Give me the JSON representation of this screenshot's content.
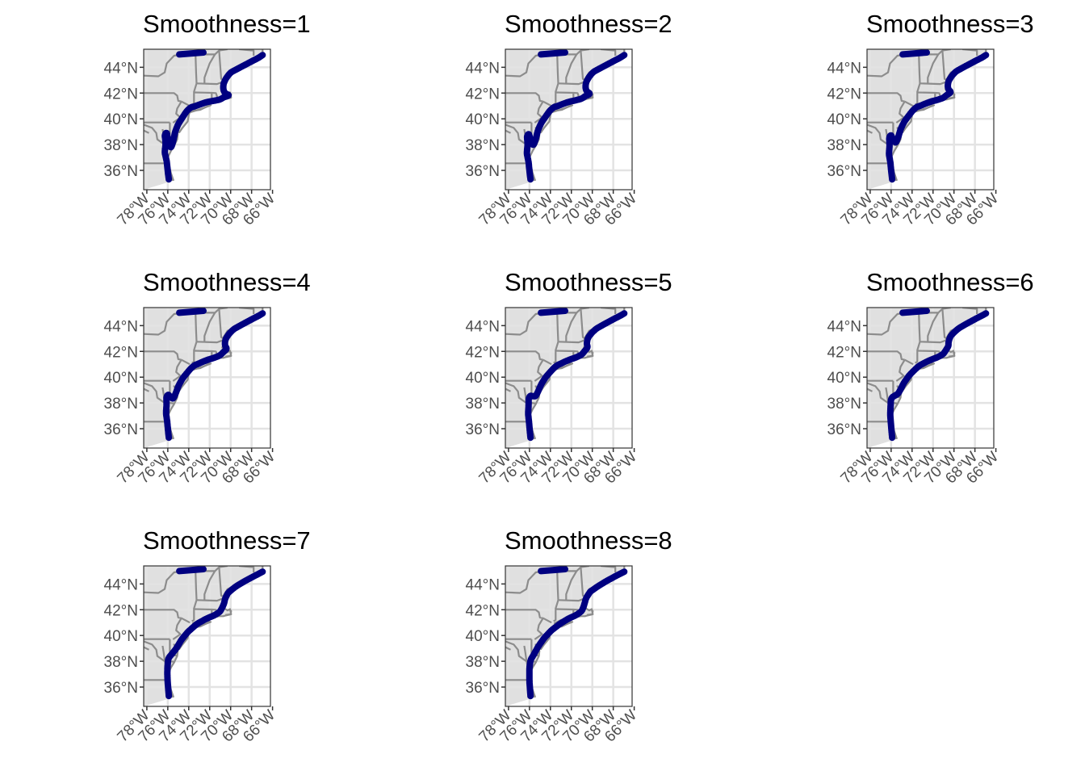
{
  "chart_data": {
    "type": "map",
    "lon_range": [
      -78.3,
      -66.2
    ],
    "lat_range": [
      34.5,
      45.4
    ],
    "lat_ticks": [
      36,
      38,
      40,
      42,
      44
    ],
    "lat_labels": [
      "36°N",
      "38°N",
      "40°N",
      "42°N",
      "44°N"
    ],
    "lon_ticks": [
      -78,
      -76,
      -74,
      -72,
      -70,
      -68,
      -66
    ],
    "lon_labels": [
      "78°W",
      "76°W",
      "74°W",
      "72°W",
      "70°W",
      "68°W",
      "66°W"
    ],
    "grid": true,
    "land_color": "#e0e0e0",
    "border_color": "#8c8c8c",
    "track_color": "#000080",
    "panels": [
      {
        "title": "Smoothness=1",
        "smoothness": 1
      },
      {
        "title": "Smoothness=2",
        "smoothness": 2
      },
      {
        "title": "Smoothness=3",
        "smoothness": 3
      },
      {
        "title": "Smoothness=4",
        "smoothness": 4
      },
      {
        "title": "Smoothness=5",
        "smoothness": 5
      },
      {
        "title": "Smoothness=6",
        "smoothness": 6
      },
      {
        "title": "Smoothness=7",
        "smoothness": 7
      },
      {
        "title": "Smoothness=8",
        "smoothness": 8
      }
    ],
    "track": {
      "rough": [
        [
          -75.9,
          35.3
        ],
        [
          -76.0,
          35.9
        ],
        [
          -76.1,
          36.7
        ],
        [
          -76.3,
          37.4
        ],
        [
          -76.2,
          38.1
        ],
        [
          -76.3,
          38.8
        ],
        [
          -76.1,
          39.0
        ],
        [
          -76.0,
          38.4
        ],
        [
          -75.7,
          37.7
        ],
        [
          -75.5,
          38.2
        ],
        [
          -75.3,
          39.0
        ],
        [
          -75.0,
          39.6
        ],
        [
          -74.6,
          40.1
        ],
        [
          -74.2,
          40.6
        ],
        [
          -73.8,
          40.9
        ],
        [
          -73.5,
          40.95
        ],
        [
          -73.0,
          41.1
        ],
        [
          -72.3,
          41.3
        ],
        [
          -71.6,
          41.4
        ],
        [
          -71.0,
          41.5
        ],
        [
          -70.6,
          41.7
        ],
        [
          -70.3,
          41.75
        ],
        [
          -70.1,
          41.85
        ],
        [
          -70.5,
          41.95
        ],
        [
          -70.7,
          42.2
        ],
        [
          -70.7,
          42.7
        ],
        [
          -70.4,
          43.2
        ],
        [
          -70.0,
          43.6
        ],
        [
          -69.3,
          43.9
        ],
        [
          -68.6,
          44.2
        ],
        [
          -67.9,
          44.5
        ],
        [
          -67.3,
          44.75
        ],
        [
          -66.95,
          44.95
        ]
      ],
      "smooth": [
        [
          -75.9,
          35.3
        ],
        [
          -76.0,
          36.4
        ],
        [
          -76.0,
          37.5
        ],
        [
          -75.9,
          38.1
        ],
        [
          -75.6,
          38.5
        ],
        [
          -75.2,
          39.1
        ],
        [
          -74.6,
          39.8
        ],
        [
          -73.9,
          40.4
        ],
        [
          -73.1,
          40.9
        ],
        [
          -72.3,
          41.3
        ],
        [
          -71.5,
          41.6
        ],
        [
          -71.0,
          41.9
        ],
        [
          -70.8,
          42.3
        ],
        [
          -70.6,
          42.9
        ],
        [
          -70.2,
          43.4
        ],
        [
          -69.5,
          43.8
        ],
        [
          -68.7,
          44.2
        ],
        [
          -67.8,
          44.6
        ],
        [
          -66.95,
          44.95
        ]
      ],
      "north_segment": [
        [
          -74.9,
          45.0
        ],
        [
          -72.6,
          45.15
        ]
      ]
    },
    "borders": {
      "west_ny": [
        [
          -78.3,
          43.35
        ],
        [
          -76.9,
          43.3
        ],
        [
          -76.3,
          43.6
        ],
        [
          -76.1,
          44.3
        ],
        [
          -75.4,
          44.9
        ],
        [
          -74.7,
          45.0
        ]
      ],
      "ny_pa": [
        [
          -78.3,
          42.0
        ],
        [
          -75.4,
          42.0
        ],
        [
          -75.1,
          41.8
        ],
        [
          -75.0,
          41.4
        ],
        [
          -74.7,
          41.35
        ]
      ],
      "ny_nj": [
        [
          -74.7,
          41.35
        ],
        [
          -73.9,
          41.0
        ]
      ],
      "nj_pa": [
        [
          -74.7,
          41.35
        ],
        [
          -75.1,
          40.8
        ],
        [
          -75.2,
          40.4
        ],
        [
          -74.8,
          40.1
        ],
        [
          -75.5,
          39.7
        ]
      ],
      "pa_md": [
        [
          -78.3,
          39.72
        ],
        [
          -75.8,
          39.72
        ]
      ],
      "de_md": [
        [
          -75.8,
          39.72
        ],
        [
          -75.8,
          38.45
        ],
        [
          -75.1,
          38.45
        ]
      ],
      "md_va_east": [
        [
          -75.8,
          38.0
        ],
        [
          -75.3,
          37.95
        ]
      ],
      "potomac": [
        [
          -78.3,
          39.55
        ],
        [
          -77.5,
          39.3
        ],
        [
          -77.1,
          38.9
        ],
        [
          -77.0,
          38.4
        ],
        [
          -76.3,
          38.0
        ]
      ],
      "va_wv": [
        [
          -78.3,
          39.1
        ],
        [
          -77.8,
          38.9
        ]
      ],
      "va_nc": [
        [
          -78.3,
          36.55
        ],
        [
          -75.9,
          36.55
        ]
      ],
      "chesapeake": [
        [
          -76.5,
          39.2
        ],
        [
          -76.4,
          38.7
        ],
        [
          -76.3,
          38.1
        ],
        [
          -76.1,
          37.3
        ],
        [
          -76.0,
          37.0
        ]
      ],
      "ny_vt": [
        [
          -73.35,
          45.0
        ],
        [
          -73.3,
          43.6
        ],
        [
          -73.25,
          42.75
        ]
      ],
      "ny_ma_ct": [
        [
          -73.25,
          42.75
        ],
        [
          -73.5,
          42.1
        ],
        [
          -73.5,
          41.2
        ],
        [
          -73.7,
          41.1
        ]
      ],
      "vt_nh": [
        [
          -71.5,
          45.0
        ],
        [
          -72.0,
          44.3
        ],
        [
          -72.5,
          43.2
        ],
        [
          -72.5,
          42.73
        ]
      ],
      "ma_north": [
        [
          -73.25,
          42.75
        ],
        [
          -71.3,
          42.7
        ],
        [
          -70.8,
          42.85
        ]
      ],
      "ma_south": [
        [
          -73.5,
          42.05
        ],
        [
          -71.8,
          42.02
        ],
        [
          -71.4,
          42.0
        ],
        [
          -71.2,
          41.5
        ]
      ],
      "ct_ri": [
        [
          -71.8,
          42.02
        ],
        [
          -71.8,
          41.35
        ]
      ],
      "nh_me": [
        [
          -71.1,
          45.3
        ],
        [
          -70.9,
          43.1
        ],
        [
          -70.7,
          43.0
        ]
      ],
      "me_nb": [
        [
          -69.2,
          45.4
        ],
        [
          -67.8,
          45.3
        ],
        [
          -67.8,
          44.9
        ]
      ],
      "canada": [
        [
          -74.7,
          45.0
        ],
        [
          -71.5,
          45.0
        ],
        [
          -71.1,
          45.3
        ],
        [
          -70.3,
          45.4
        ]
      ],
      "long_island": [
        [
          -73.8,
          40.6
        ],
        [
          -72.9,
          40.7
        ],
        [
          -72.0,
          41.05
        ]
      ],
      "cape_cod": [
        [
          -70.5,
          41.6
        ],
        [
          -70.0,
          41.65
        ],
        [
          -69.95,
          41.9
        ],
        [
          -70.15,
          42.05
        ]
      ],
      "nc_banks": [
        [
          -76.0,
          36.5
        ],
        [
          -75.8,
          36.0
        ],
        [
          -75.6,
          35.5
        ],
        [
          -75.5,
          35.2
        ]
      ]
    }
  }
}
